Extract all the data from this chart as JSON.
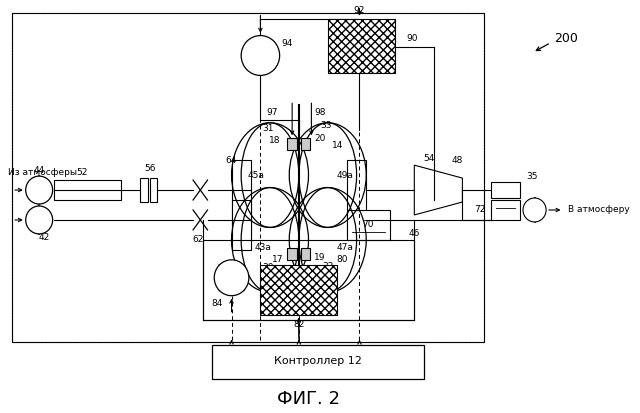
{
  "title": "ФИГ. 2",
  "background_color": "#ffffff",
  "figure_label": "200",
  "controller_label": "Контроллер 12",
  "left_arrow_label": "Из атмосферы",
  "right_arrow_label": "В атмосферу"
}
